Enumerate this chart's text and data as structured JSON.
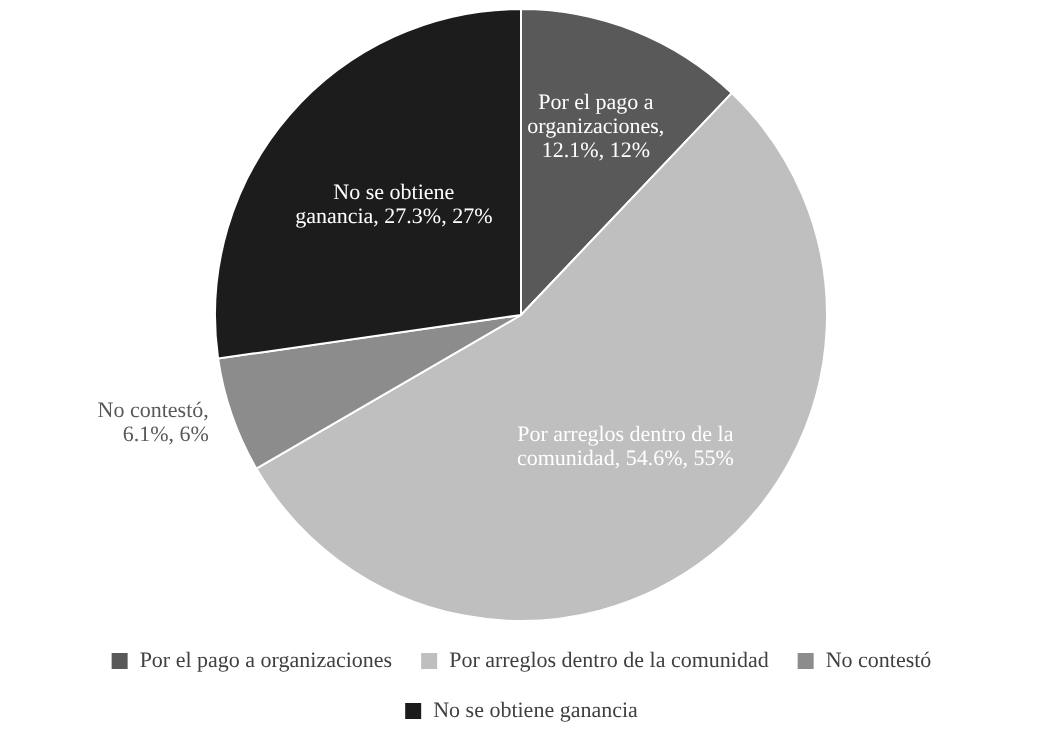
{
  "chart_data": {
    "type": "pie",
    "categories": [
      "Por el pago a organizaciones",
      "Por arreglos dentro de la comunidad",
      "No contestó",
      "No se obtiene ganancia"
    ],
    "values": [
      12.1,
      54.6,
      6.1,
      27.3
    ],
    "colors": [
      "#595959",
      "#bfbfbf",
      "#8c8c8c",
      "#1c1c1c"
    ],
    "value_labels": [
      "Por el pago a organizaciones, 12.1%, 12%",
      "Por arreglos dentro de la comunidad, 54.6%, 55%",
      "No contestó, 6.1%, 6%",
      "No se obtiene ganancia, 27.3%, 27%"
    ],
    "legend": "bottom"
  }
}
